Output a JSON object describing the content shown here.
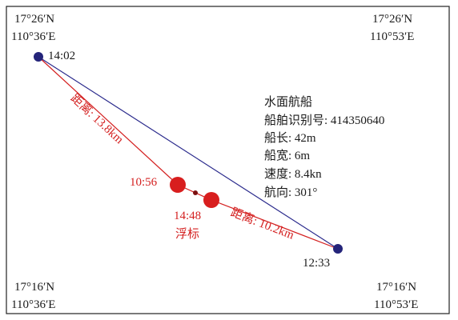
{
  "corners": {
    "top_left": {
      "lat": "17°26′N",
      "lon": "110°36′E"
    },
    "top_right": {
      "lat": "17°26′N",
      "lon": "110°53′E"
    },
    "bottom_left": {
      "lat": "17°16′N",
      "lon": "110°36′E"
    },
    "bottom_right": {
      "lat": "17°16′N",
      "lon": "110°53′E"
    }
  },
  "points": {
    "start_time": "14:02",
    "end_time": "12:33",
    "buoy_time_1": "10:56",
    "buoy_time_2": "14:48",
    "buoy_label": "浮标"
  },
  "distances": {
    "first": "距离: 13.8km",
    "second": "距离: 10.2km"
  },
  "ship_info": {
    "title": "水面航船",
    "lines": [
      "船舶识别号: 414350640",
      "船长: 42m",
      "船宽: 6m",
      "速度: 8.4kn",
      "航向: 301°"
    ]
  }
}
